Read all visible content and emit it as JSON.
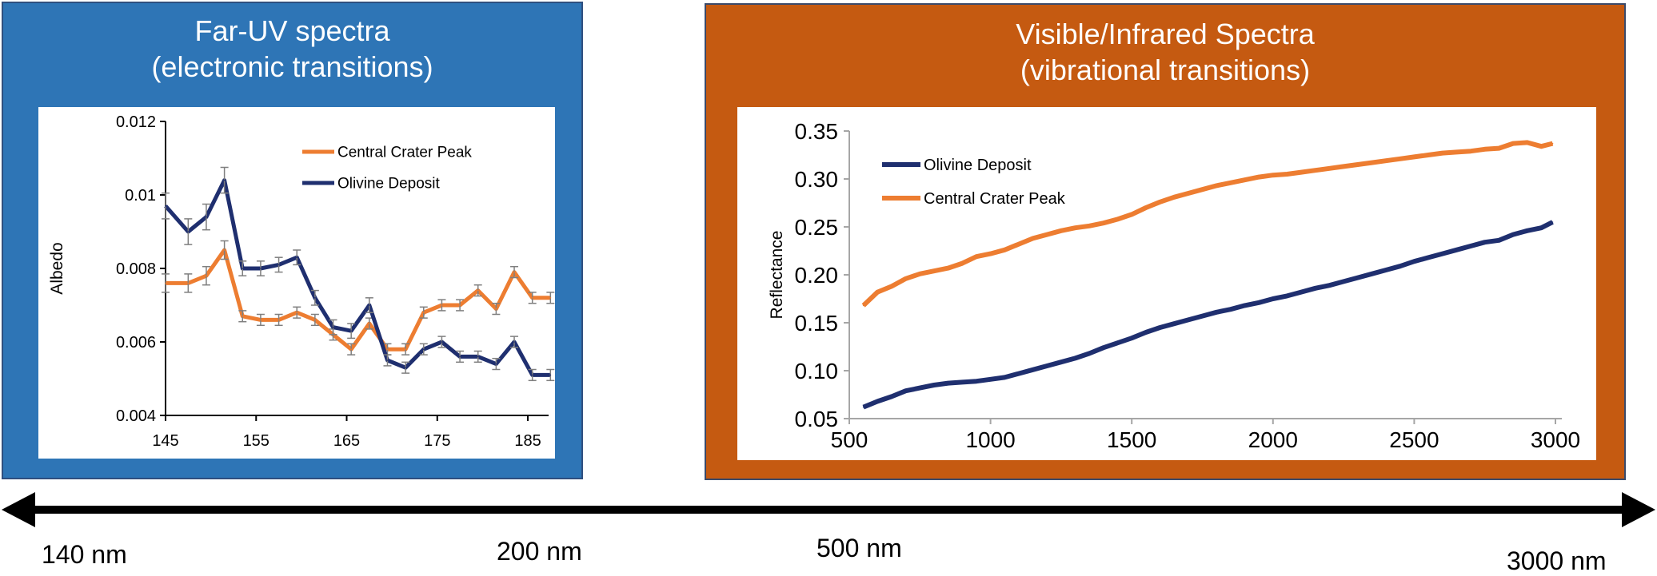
{
  "panels": {
    "uv": {
      "title_line1": "Far-UV spectra",
      "title_line2": "(electronic transitions)",
      "color": "#2e75b6"
    },
    "ir": {
      "title_line1": "Visible/Infrared  Spectra",
      "title_line2": "(vibrational transitions)",
      "color": "#c55a11"
    }
  },
  "wavelength_axis": {
    "labels": [
      "140 nm",
      "200 nm",
      "500 nm",
      "3000 nm"
    ]
  },
  "chart_data": [
    {
      "type": "line",
      "title": "",
      "xlabel": "",
      "ylabel": "Albedo",
      "xlim": [
        145,
        188
      ],
      "ylim": [
        0.004,
        0.012
      ],
      "xticks": [
        145,
        155,
        165,
        175,
        185
      ],
      "xtick_labels": [
        "145",
        "155",
        "165",
        "175",
        "185"
      ],
      "yticks": [
        0.004,
        0.006,
        0.008,
        0.01,
        0.012
      ],
      "ytick_labels": [
        "0.004",
        "0.006",
        "0.008",
        "0.01",
        "0.012"
      ],
      "error_bars": true,
      "legend_position": "top-right",
      "x": [
        145,
        147.5,
        149.5,
        151.5,
        153.5,
        155.5,
        157.5,
        159.5,
        161.5,
        163.5,
        165.5,
        167.5,
        169.5,
        171.5,
        173.5,
        175.5,
        177.5,
        179.5,
        181.5,
        183.5,
        185.5,
        187.5
      ],
      "series": [
        {
          "name": "Central Crater Peak",
          "color": "#ed7d31",
          "values": [
            0.0076,
            0.0076,
            0.0078,
            0.0085,
            0.0067,
            0.0066,
            0.0066,
            0.0068,
            0.0066,
            0.0062,
            0.0058,
            0.0065,
            0.0058,
            0.0058,
            0.0068,
            0.007,
            0.007,
            0.0074,
            0.0069,
            0.0079,
            0.0072,
            0.0072
          ],
          "errors": [
            0.00025,
            0.00025,
            0.00025,
            0.00025,
            0.00015,
            0.00015,
            0.00015,
            0.00015,
            0.00015,
            0.00015,
            0.00015,
            0.00015,
            0.00015,
            0.00015,
            0.00015,
            0.00015,
            0.00015,
            0.00015,
            0.00015,
            0.00015,
            0.00015,
            0.00015
          ]
        },
        {
          "name": "Olivine Deposit",
          "color": "#1f2f6f",
          "values": [
            0.0097,
            0.009,
            0.0094,
            0.0104,
            0.008,
            0.008,
            0.0081,
            0.0083,
            0.0072,
            0.0064,
            0.0063,
            0.007,
            0.0055,
            0.0053,
            0.0058,
            0.006,
            0.0056,
            0.0056,
            0.0054,
            0.006,
            0.0051,
            0.0051
          ],
          "errors": [
            0.00035,
            0.00035,
            0.00035,
            0.00035,
            0.0002,
            0.0002,
            0.0002,
            0.0002,
            0.0002,
            0.0002,
            0.0002,
            0.0002,
            0.00015,
            0.00015,
            0.00015,
            0.00015,
            0.00015,
            0.00015,
            0.00015,
            0.00015,
            0.00015,
            0.00015
          ]
        }
      ]
    },
    {
      "type": "line",
      "title": "",
      "xlabel": "",
      "ylabel": "Reflectance",
      "xlim": [
        500,
        3000
      ],
      "ylim": [
        0.05,
        0.35
      ],
      "xticks": [
        500,
        1000,
        1500,
        2000,
        2500,
        3000
      ],
      "xtick_labels": [
        "500",
        "1000",
        "1500",
        "2000",
        "2500",
        "3000"
      ],
      "yticks": [
        0.05,
        0.1,
        0.15,
        0.2,
        0.25,
        0.3,
        0.35
      ],
      "ytick_labels": [
        "0.05",
        "0.10",
        "0.15",
        "0.20",
        "0.25",
        "0.30",
        "0.35"
      ],
      "legend_position": "top-left",
      "x": [
        550,
        600,
        650,
        700,
        750,
        800,
        850,
        900,
        950,
        1000,
        1050,
        1100,
        1150,
        1200,
        1250,
        1300,
        1350,
        1400,
        1450,
        1500,
        1550,
        1600,
        1650,
        1700,
        1750,
        1800,
        1850,
        1900,
        1950,
        2000,
        2050,
        2100,
        2150,
        2200,
        2250,
        2300,
        2350,
        2400,
        2450,
        2500,
        2550,
        2600,
        2650,
        2700,
        2750,
        2800,
        2850,
        2900,
        2950,
        2990
      ],
      "series": [
        {
          "name": "Olivine Deposit",
          "color": "#1f2f6f",
          "values": [
            0.062,
            0.068,
            0.073,
            0.079,
            0.082,
            0.085,
            0.087,
            0.088,
            0.089,
            0.091,
            0.093,
            0.097,
            0.101,
            0.105,
            0.109,
            0.113,
            0.118,
            0.124,
            0.129,
            0.134,
            0.14,
            0.145,
            0.149,
            0.153,
            0.157,
            0.161,
            0.164,
            0.168,
            0.171,
            0.175,
            0.178,
            0.182,
            0.186,
            0.189,
            0.193,
            0.197,
            0.201,
            0.205,
            0.209,
            0.214,
            0.218,
            0.222,
            0.226,
            0.23,
            0.234,
            0.236,
            0.242,
            0.246,
            0.249,
            0.255
          ]
        },
        {
          "name": "Central Crater Peak",
          "color": "#ed7d31",
          "values": [
            0.168,
            0.182,
            0.188,
            0.196,
            0.201,
            0.204,
            0.207,
            0.212,
            0.219,
            0.222,
            0.226,
            0.232,
            0.238,
            0.242,
            0.246,
            0.249,
            0.251,
            0.254,
            0.258,
            0.263,
            0.27,
            0.276,
            0.281,
            0.285,
            0.289,
            0.293,
            0.296,
            0.299,
            0.302,
            0.304,
            0.305,
            0.307,
            0.309,
            0.311,
            0.313,
            0.315,
            0.317,
            0.319,
            0.321,
            0.323,
            0.325,
            0.327,
            0.328,
            0.329,
            0.331,
            0.332,
            0.337,
            0.338,
            0.334,
            0.337
          ]
        }
      ]
    }
  ]
}
